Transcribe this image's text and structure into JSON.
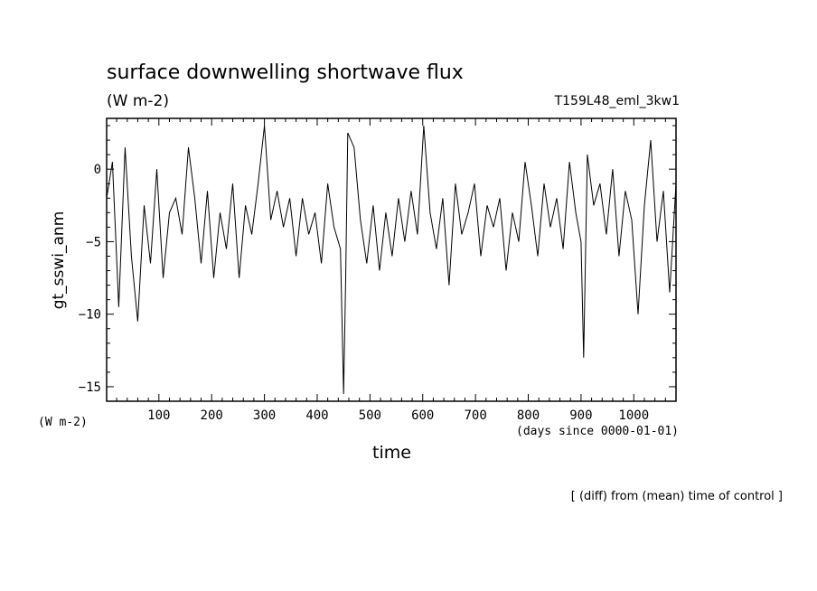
{
  "title": "surface downwelling shortwave flux",
  "units": "(W m-2)",
  "experiment": "T159L48_eml_3kw1",
  "footnote": "[ (diff) from (mean) time of control ]",
  "chart_data": {
    "type": "line",
    "title": "surface downwelling shortwave flux",
    "xlabel": "time",
    "xunits": "(days since 0000-01-01)",
    "ylabel": "gt_sswi_anm",
    "yunits": "(W m-2)",
    "xlim": [
      1,
      1080
    ],
    "ylim": [
      -16,
      3.5
    ],
    "xticks": [
      100,
      200,
      300,
      400,
      500,
      600,
      700,
      800,
      900,
      1000
    ],
    "yticks": [
      0,
      -5,
      -10,
      -15
    ],
    "grid": false,
    "series": [
      {
        "x": [
          1,
          12,
          24,
          36,
          48,
          60,
          72,
          84,
          96,
          108,
          120,
          132,
          144,
          156,
          168,
          180,
          192,
          204,
          216,
          228,
          240,
          252,
          264,
          276,
          288,
          300,
          312,
          324,
          336,
          348,
          360,
          372,
          384,
          396,
          408,
          420,
          432,
          444,
          450,
          454,
          458,
          470,
          482,
          494,
          506,
          518,
          530,
          542,
          554,
          566,
          578,
          590,
          602,
          614,
          626,
          638,
          650,
          662,
          674,
          686,
          698,
          710,
          722,
          734,
          746,
          758,
          770,
          782,
          794,
          806,
          818,
          830,
          842,
          854,
          866,
          878,
          890,
          900,
          905,
          912,
          924,
          936,
          948,
          960,
          972,
          984,
          996,
          1008,
          1020,
          1032,
          1044,
          1056,
          1068,
          1080
        ],
        "y": [
          -2,
          0.5,
          -9.5,
          1.5,
          -6,
          -10.5,
          -2.5,
          -6.5,
          0,
          -7.5,
          -3,
          -2,
          -4.5,
          1.5,
          -2,
          -6.5,
          -1.5,
          -7.5,
          -3,
          -5.5,
          -1,
          -7.5,
          -2.5,
          -4.5,
          -1,
          3,
          -3.5,
          -1.5,
          -4,
          -2,
          -6,
          -2,
          -4.5,
          -3,
          -6.5,
          -1,
          -4,
          -5.5,
          -15.5,
          -7.5,
          2.5,
          1.5,
          -3.5,
          -6.5,
          -2.5,
          -7,
          -3,
          -6,
          -2,
          -5,
          -1.5,
          -4.5,
          3,
          -3,
          -5.5,
          -2,
          -8,
          -1,
          -4.5,
          -3,
          -1,
          -6,
          -2.5,
          -4,
          -2,
          -7,
          -3,
          -5,
          0.5,
          -2.5,
          -6,
          -1,
          -4,
          -2,
          -5.5,
          0.5,
          -3,
          -5,
          -13,
          1,
          -2.5,
          -1,
          -4.5,
          0,
          -6,
          -1.5,
          -3.5,
          -10,
          -2.5,
          2,
          -5,
          -1.5,
          -8.5,
          -1
        ]
      }
    ]
  }
}
